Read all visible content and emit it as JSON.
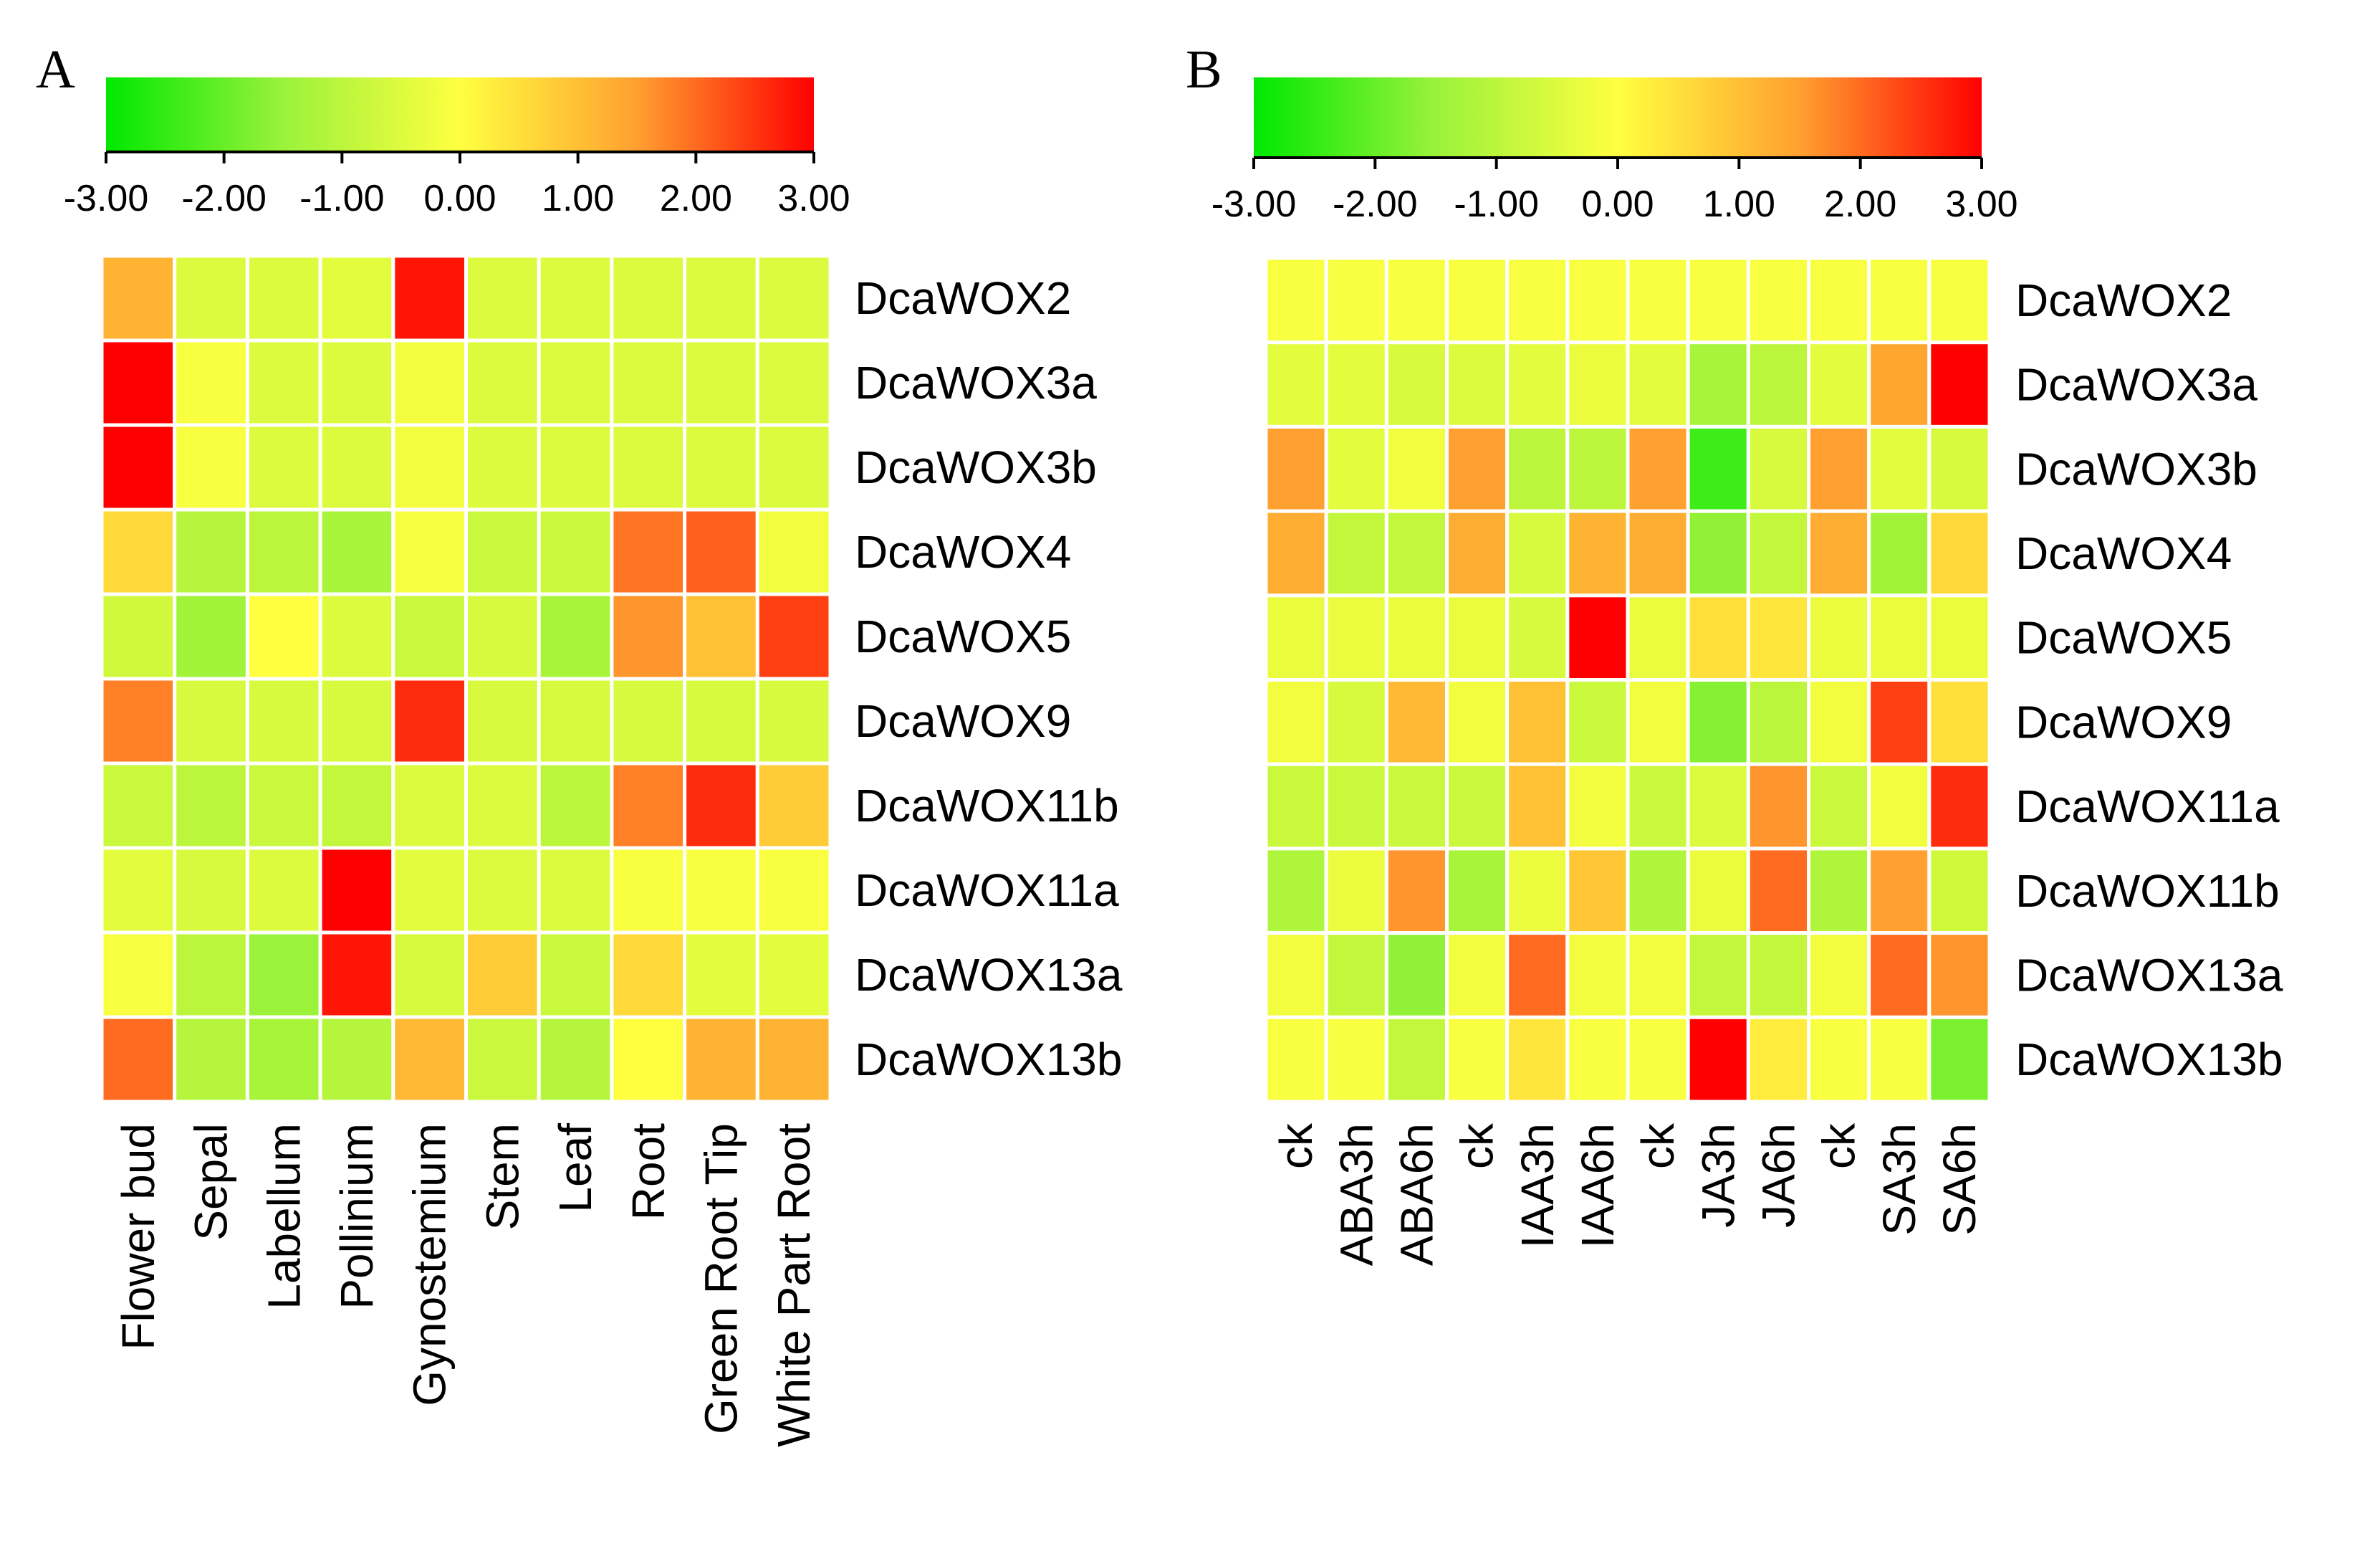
{
  "panels": [
    {
      "label": "A",
      "colorbar": {
        "min": -3.0,
        "max": 3.0,
        "ticks": [
          "-3.00",
          "-2.00",
          "-1.00",
          "0.00",
          "1.00",
          "2.00",
          "3.00"
        ],
        "stops": [
          {
            "value": -3.0,
            "color": "#00e800"
          },
          {
            "value": -1.5,
            "color": "#9af23a"
          },
          {
            "value": 0.0,
            "color": "#ffff40"
          },
          {
            "value": 1.5,
            "color": "#ffa030"
          },
          {
            "value": 3.0,
            "color": "#ff0000"
          }
        ]
      },
      "chart_data": {
        "type": "heatmap",
        "title": "",
        "rows": [
          "DcaWOX2",
          "DcaWOX3a",
          "DcaWOX3b",
          "DcaWOX4",
          "DcaWOX5",
          "DcaWOX9",
          "DcaWOX11b",
          "DcaWOX11a",
          "DcaWOX13a",
          "DcaWOX13b"
        ],
        "columns": [
          "Flower bud",
          "Sepal",
          "Labellum",
          "Pollinium",
          "Gynostemium",
          "Stem",
          "Leaf",
          "Root",
          "Green Root Tip",
          "White Part Root"
        ],
        "value_range": [
          -3.0,
          3.0
        ],
        "values": [
          [
            1.2,
            -0.5,
            -0.5,
            -0.4,
            2.8,
            -0.5,
            -0.5,
            -0.5,
            -0.5,
            -0.5
          ],
          [
            3.0,
            -0.1,
            -0.5,
            -0.5,
            -0.2,
            -0.5,
            -0.5,
            -0.5,
            -0.5,
            -0.5
          ],
          [
            3.0,
            -0.1,
            -0.5,
            -0.5,
            -0.2,
            -0.5,
            -0.5,
            -0.5,
            -0.5,
            -0.5
          ],
          [
            0.6,
            -1.1,
            -1.0,
            -1.3,
            -0.1,
            -0.8,
            -0.8,
            1.9,
            2.1,
            -0.2
          ],
          [
            -0.7,
            -1.4,
            0.0,
            -0.5,
            -0.8,
            -0.6,
            -1.3,
            1.6,
            1.0,
            2.4
          ],
          [
            1.8,
            -0.6,
            -0.6,
            -0.6,
            2.6,
            -0.6,
            -0.6,
            -0.6,
            -0.6,
            -0.6
          ],
          [
            -0.8,
            -1.0,
            -0.8,
            -0.9,
            -0.5,
            -0.5,
            -1.0,
            1.8,
            2.6,
            0.8
          ],
          [
            -0.4,
            -0.6,
            -0.5,
            3.0,
            -0.4,
            -0.5,
            -0.5,
            -0.1,
            -0.1,
            -0.1
          ],
          [
            -0.1,
            -1.0,
            -1.5,
            2.8,
            -0.6,
            0.8,
            -0.8,
            0.6,
            -0.4,
            -0.4
          ],
          [
            2.0,
            -1.1,
            -1.3,
            -1.1,
            1.1,
            -0.8,
            -1.1,
            0.0,
            1.2,
            1.2
          ]
        ]
      }
    },
    {
      "label": "B",
      "colorbar": {
        "min": -3.0,
        "max": 3.0,
        "ticks": [
          "-3.00",
          "-2.00",
          "-1.00",
          "0.00",
          "1.00",
          "2.00",
          "3.00"
        ],
        "stops": [
          {
            "value": -3.0,
            "color": "#00e800"
          },
          {
            "value": -1.5,
            "color": "#9af23a"
          },
          {
            "value": 0.0,
            "color": "#ffff40"
          },
          {
            "value": 1.5,
            "color": "#ffa030"
          },
          {
            "value": 3.0,
            "color": "#ff0000"
          }
        ]
      },
      "chart_data": {
        "type": "heatmap",
        "title": "",
        "rows": [
          "DcaWOX2",
          "DcaWOX3a",
          "DcaWOX3b",
          "DcaWOX4",
          "DcaWOX5",
          "DcaWOX9",
          "DcaWOX11a",
          "DcaWOX11b",
          "DcaWOX13a",
          "DcaWOX13b"
        ],
        "columns": [
          "ck",
          "ABA3h",
          "ABA6h",
          "ck",
          "IAA3h",
          "IAA6h",
          "ck",
          "JA3h",
          "JA6h",
          "ck",
          "SA3h",
          "SA6h"
        ],
        "value_range": [
          -3.0,
          3.0
        ],
        "values": [
          [
            -0.1,
            -0.1,
            -0.1,
            -0.1,
            -0.1,
            -0.1,
            -0.1,
            -0.1,
            -0.1,
            -0.1,
            -0.1,
            -0.1
          ],
          [
            -0.4,
            -0.4,
            -0.6,
            -0.5,
            -0.4,
            -0.3,
            -0.4,
            -1.3,
            -1.0,
            -0.4,
            1.4,
            3.0
          ],
          [
            1.5,
            -0.4,
            -0.2,
            1.5,
            -1.0,
            -1.0,
            1.5,
            -2.4,
            -0.6,
            1.5,
            -0.4,
            -0.6
          ],
          [
            1.3,
            -0.9,
            -0.9,
            1.3,
            -0.6,
            1.2,
            1.3,
            -1.6,
            -0.9,
            1.3,
            -1.4,
            0.6
          ],
          [
            -0.3,
            -0.3,
            -0.3,
            -0.3,
            -0.6,
            3.0,
            -0.3,
            0.5,
            0.4,
            -0.3,
            -0.3,
            -0.3
          ],
          [
            -0.2,
            -0.6,
            1.1,
            -0.2,
            1.0,
            -0.8,
            -0.2,
            -1.7,
            -1.0,
            -0.2,
            2.4,
            0.5
          ],
          [
            -0.8,
            -0.8,
            -0.8,
            -0.8,
            1.0,
            -0.2,
            -0.8,
            -0.5,
            1.6,
            -0.8,
            -0.2,
            2.6
          ],
          [
            -1.2,
            -0.3,
            1.6,
            -1.3,
            -0.3,
            0.9,
            -1.2,
            -0.3,
            2.0,
            -1.2,
            1.5,
            -0.7
          ],
          [
            -0.2,
            -0.9,
            -1.6,
            -0.2,
            2.0,
            -0.2,
            -0.2,
            -0.9,
            -0.9,
            -0.2,
            2.0,
            1.6
          ],
          [
            -0.1,
            -0.1,
            -0.9,
            -0.1,
            0.4,
            -0.1,
            -0.1,
            3.0,
            0.3,
            -0.1,
            -0.1,
            -1.8
          ]
        ]
      }
    }
  ]
}
